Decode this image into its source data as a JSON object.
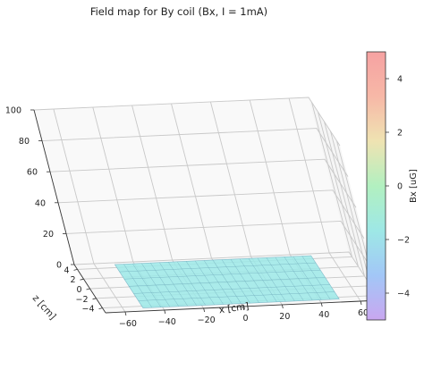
{
  "chart_data": {
    "type": "surface3d",
    "title": "Field map for By coil (Bx, I = 1mA)",
    "xlabel": "x [cm]",
    "ylabel": "z [cm]",
    "zlabel": "",
    "xlim": [
      -70,
      70
    ],
    "ylim": [
      -5,
      5
    ],
    "zlim": [
      0,
      100
    ],
    "xticks": [
      -60,
      -40,
      -20,
      0,
      20,
      40,
      60
    ],
    "yticks": [
      -4,
      -2,
      0,
      2,
      4
    ],
    "zticks": [
      0,
      20,
      40,
      60,
      80,
      100
    ],
    "grid": true,
    "surface": {
      "x_range": [
        -50,
        50
      ],
      "y_range": [
        -4.5,
        4.5
      ],
      "value_uG": 0,
      "color": "#9ce9e8"
    },
    "colorbar": {
      "label": "Bx [uG]",
      "range": [
        -5,
        5
      ],
      "ticks": [
        -4,
        -2,
        0,
        2,
        4
      ],
      "colors_bottom_to_top": [
        "#c9a7f0",
        "#a2c7f7",
        "#9ee8e6",
        "#b2f0c0",
        "#efe3b2",
        "#f7b8a7",
        "#f6a2a2"
      ]
    }
  }
}
